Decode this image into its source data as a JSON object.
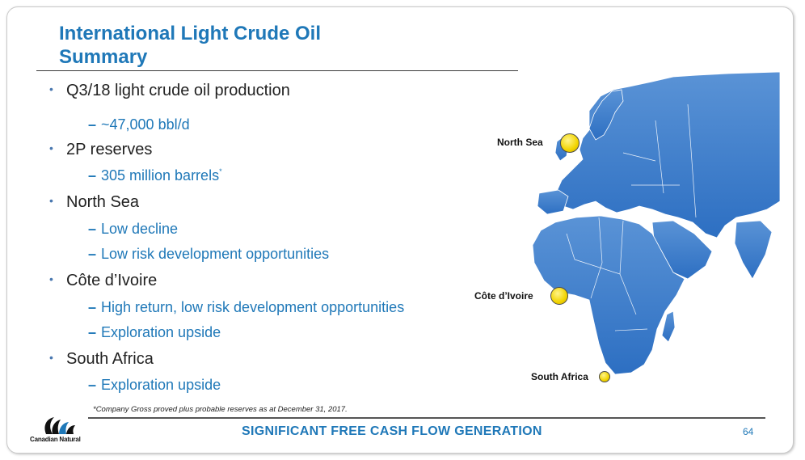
{
  "title_line1": "International Light Crude Oil",
  "title_line2": "Summary",
  "bullets": [
    {
      "text": "Q3/18 light crude oil production",
      "subs": [
        {
          "text": "~47,000 bbl/d"
        }
      ]
    },
    {
      "text": "2P reserves",
      "subs": [
        {
          "text": "305 million barrels",
          "sup": "*"
        }
      ]
    },
    {
      "text": "North Sea",
      "subs": [
        {
          "text": "Low decline"
        },
        {
          "text": "Low risk development opportunities"
        }
      ]
    },
    {
      "text": "Côte d’Ivoire",
      "subs": [
        {
          "text": "High return, low risk development opportunities"
        },
        {
          "text": "Exploration upside"
        }
      ]
    },
    {
      "text": "South Africa",
      "subs": [
        {
          "text": "Exploration upside"
        }
      ]
    }
  ],
  "map": {
    "labels": {
      "north_sea": "North Sea",
      "cote_divoire": "Côte d’Ivoire",
      "south_africa": "South Africa"
    },
    "land_color": "#3d7fcf",
    "marker_color": "#f2d400"
  },
  "footnote": "*Company Gross proved plus probable reserves as at December 31, 2017.",
  "tagline": "SIGNIFICANT FREE CASH FLOW GENERATION",
  "page_number": "64",
  "logo_text": "Canadian Natural",
  "colors": {
    "accent": "#1f78b8",
    "body_text": "#222222"
  }
}
